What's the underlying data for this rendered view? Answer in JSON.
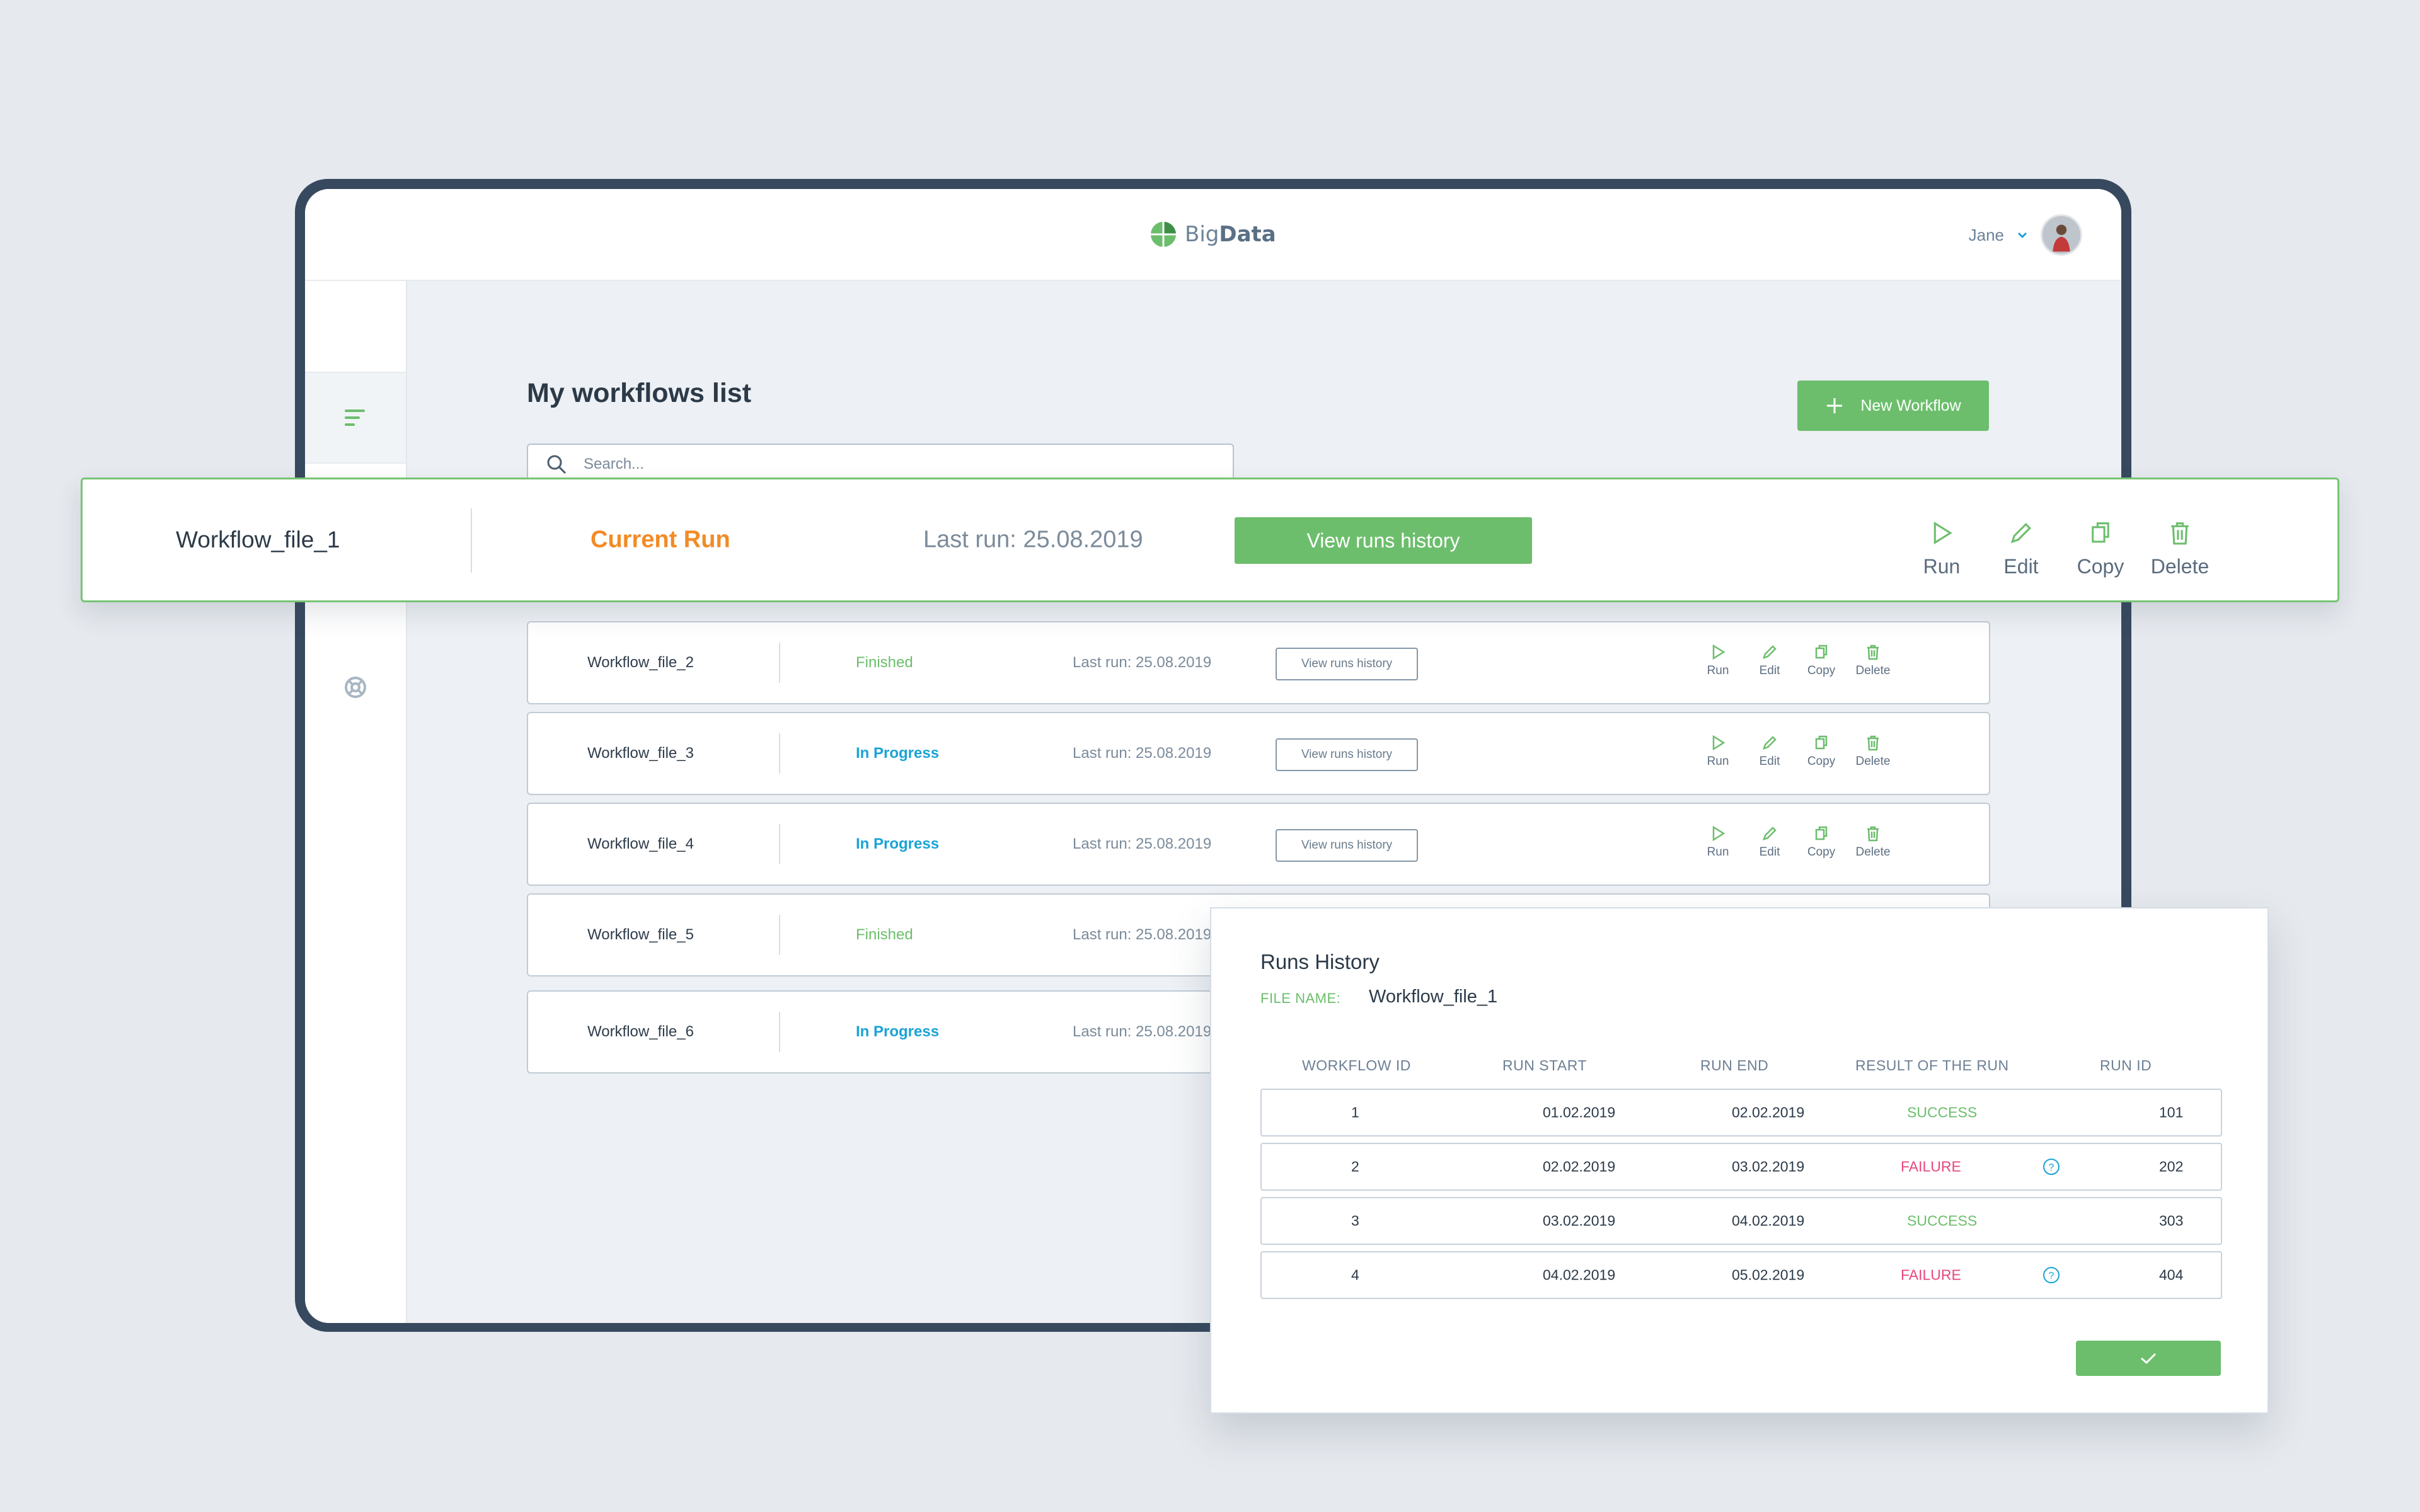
{
  "app": {
    "logo_text_light": "Big",
    "logo_text_bold": "Data",
    "user_name": "Jane"
  },
  "page": {
    "title": "My workflows list",
    "new_button": "New Workflow",
    "search_placeholder": "Search..."
  },
  "highlight_row": {
    "name": "Workflow_file_1",
    "status": "Current Run",
    "last_run": "Last run: 25.08.2019",
    "view_button": "View runs history",
    "actions": [
      "Run",
      "Edit",
      "Copy",
      "Delete"
    ]
  },
  "workflows": [
    {
      "name": "Workflow_file_2",
      "status": "Finished",
      "last_run": "Last run: 25.08.2019",
      "view_button": "View runs history"
    },
    {
      "name": "Workflow_file_3",
      "status": "In Progress",
      "last_run": "Last run: 25.08.2019",
      "view_button": "View runs history"
    },
    {
      "name": "Workflow_file_4",
      "status": "In Progress",
      "last_run": "Last run: 25.08.2019",
      "view_button": "View runs history"
    },
    {
      "name": "Workflow_file_5",
      "status": "Finished",
      "last_run": "Last run: 25.08.2019"
    },
    {
      "name": "Workflow_file_6",
      "status": "In Progress",
      "last_run": "Last run: 25.08.2019"
    }
  ],
  "row_actions": [
    "Run",
    "Edit",
    "Copy",
    "Delete"
  ],
  "runs_history": {
    "title": "Runs History",
    "file_label": "FILE NAME:",
    "file_name": "Workflow_file_1",
    "columns": [
      "WORKFLOW ID",
      "RUN START",
      "RUN END",
      "RESULT OF THE RUN",
      "RUN ID"
    ],
    "rows": [
      {
        "id": "1",
        "start": "01.02.2019",
        "end": "02.02.2019",
        "result": "SUCCESS",
        "run_id": "101"
      },
      {
        "id": "2",
        "start": "02.02.2019",
        "end": "03.02.2019",
        "result": "FAILURE",
        "run_id": "202"
      },
      {
        "id": "3",
        "start": "03.02.2019",
        "end": "04.02.2019",
        "result": "SUCCESS",
        "run_id": "303"
      },
      {
        "id": "4",
        "start": "04.02.2019",
        "end": "05.02.2019",
        "result": "FAILURE",
        "run_id": "404"
      }
    ]
  },
  "colors": {
    "accent_green": "#6cbe6c",
    "current_run": "#f28b26",
    "in_progress": "#1aa3d7",
    "failure": "#e8477b",
    "frame": "#37495e"
  }
}
